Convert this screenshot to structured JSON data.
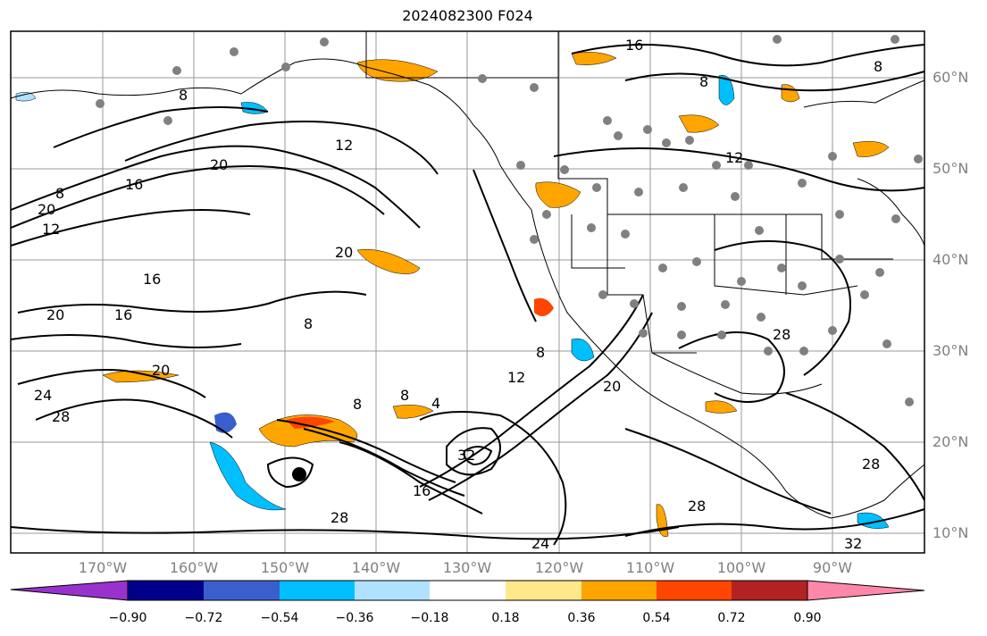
{
  "title": "2024082300 F024",
  "map": {
    "lat_labels": [
      "60°N",
      "50°N",
      "40°N",
      "30°N",
      "20°N",
      "10°N"
    ],
    "lon_labels": [
      "170°W",
      "160°W",
      "150°W",
      "140°W",
      "130°W",
      "120°W",
      "110°W",
      "100°W",
      "90°W"
    ],
    "contour_labels": [
      "8",
      "12",
      "16",
      "20",
      "24",
      "28",
      "32",
      "4"
    ],
    "storm_marker": "storm-center"
  },
  "colorbar": {
    "ticks": [
      "−0.90",
      "−0.72",
      "−0.54",
      "−0.36",
      "−0.18",
      "0.18",
      "0.36",
      "0.54",
      "0.72",
      "0.90"
    ],
    "colors": [
      "#9932cc",
      "#00008b",
      "#3a5fcd",
      "#00bfff",
      "#b0e2ff",
      "#ffffff",
      "#ffe88a",
      "#ffa500",
      "#ff4500",
      "#b22222",
      "#ff88aa"
    ]
  }
}
